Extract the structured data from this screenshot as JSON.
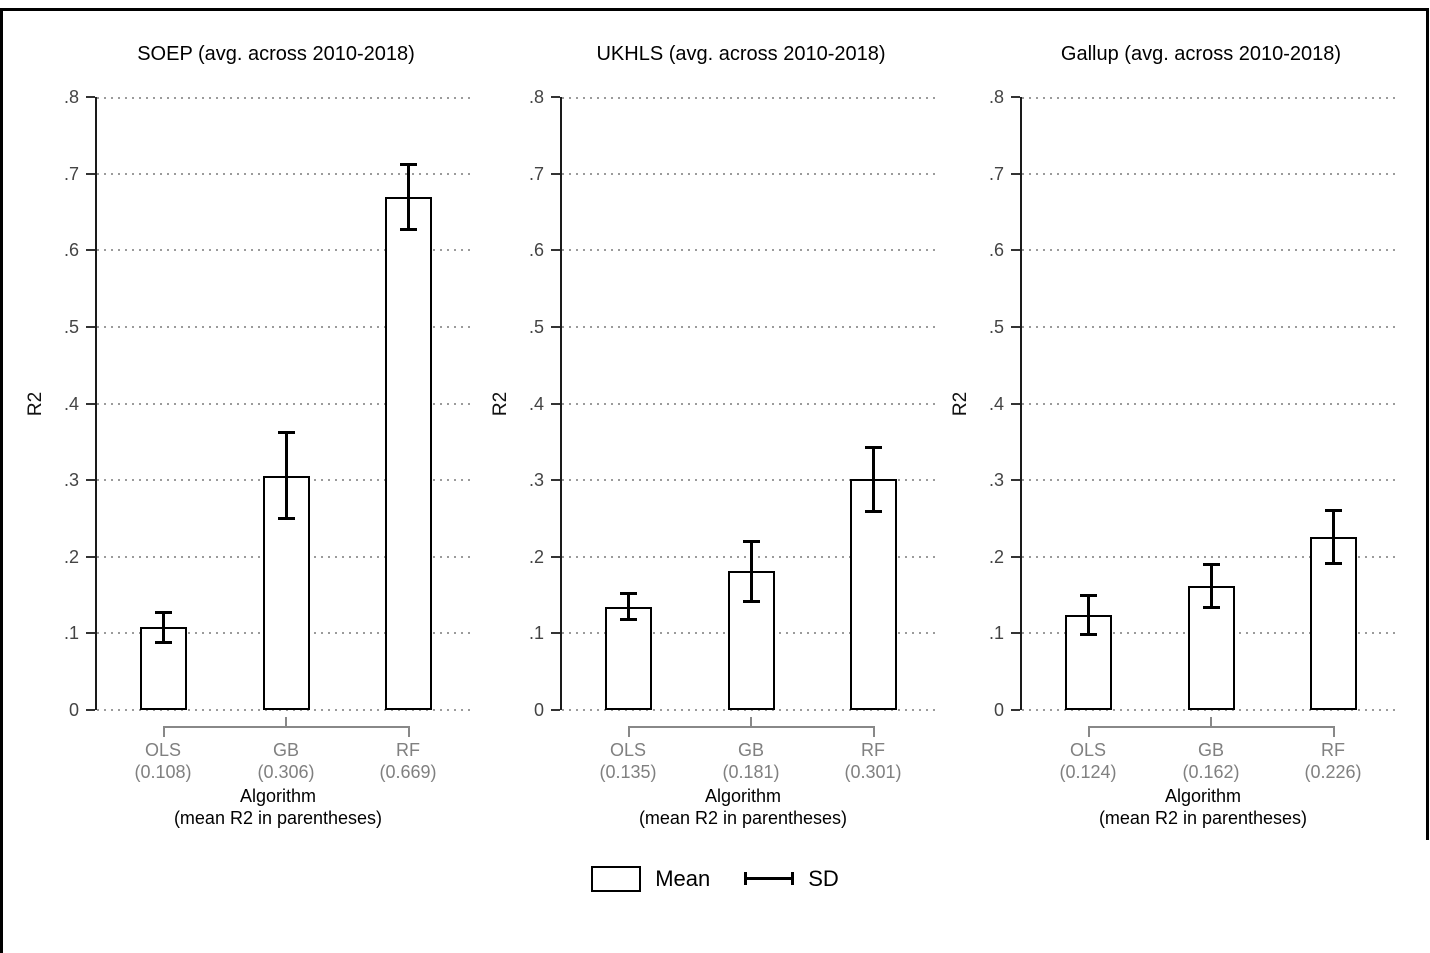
{
  "figure": {
    "background": "#ffffff",
    "frame_color": "#000000",
    "y_axis_label": "R2",
    "x_axis_title": "Algorithm",
    "x_axis_subtitle": "(mean R2 in parentheses)",
    "yticks": {
      "values": [
        0,
        0.1,
        0.2,
        0.3,
        0.4,
        0.5,
        0.6,
        0.7,
        0.8
      ],
      "labels": [
        "0",
        ".1",
        ".2",
        ".3",
        ".4",
        ".5",
        ".6",
        ".7",
        ".8"
      ]
    },
    "legend": {
      "mean_label": "Mean",
      "sd_label": "SD"
    },
    "colors": {
      "bar_fill": "#ffffff",
      "bar_border": "#000000",
      "gridline": "#9b9b9b",
      "category_label": "#808080",
      "bracket": "#888888",
      "axis": "#1a1a1a"
    }
  },
  "chart_data": [
    {
      "type": "bar",
      "title": "SOEP (avg. across 2010-2018)",
      "categories": [
        "OLS",
        "GB",
        "RF"
      ],
      "values": [
        0.108,
        0.306,
        0.669
      ],
      "value_labels": [
        "(0.108)",
        "(0.306)",
        "(0.669)"
      ],
      "sd": [
        0.02,
        0.057,
        0.043
      ],
      "xlabel": "Algorithm (mean R2 in parentheses)",
      "ylabel": "R2",
      "ylim": [
        0,
        0.8
      ],
      "grid": "dotted-horizontal",
      "legend_position": "bottom"
    },
    {
      "type": "bar",
      "title": "UKHLS (avg. across 2010-2018)",
      "categories": [
        "OLS",
        "GB",
        "RF"
      ],
      "values": [
        0.135,
        0.181,
        0.301
      ],
      "value_labels": [
        "(0.135)",
        "(0.181)",
        "(0.301)"
      ],
      "sd": [
        0.018,
        0.04,
        0.042
      ],
      "xlabel": "Algorithm (mean R2 in parentheses)",
      "ylabel": "R2",
      "ylim": [
        0,
        0.8
      ],
      "grid": "dotted-horizontal",
      "legend_position": "bottom"
    },
    {
      "type": "bar",
      "title": "Gallup (avg. across 2010-2018)",
      "categories": [
        "OLS",
        "GB",
        "RF"
      ],
      "values": [
        0.124,
        0.162,
        0.226
      ],
      "value_labels": [
        "(0.124)",
        "(0.162)",
        "(0.226)"
      ],
      "sd": [
        0.026,
        0.029,
        0.035
      ],
      "xlabel": "Algorithm (mean R2 in parentheses)",
      "ylabel": "R2",
      "ylim": [
        0,
        0.8
      ],
      "grid": "dotted-horizontal",
      "legend_position": "bottom"
    }
  ]
}
